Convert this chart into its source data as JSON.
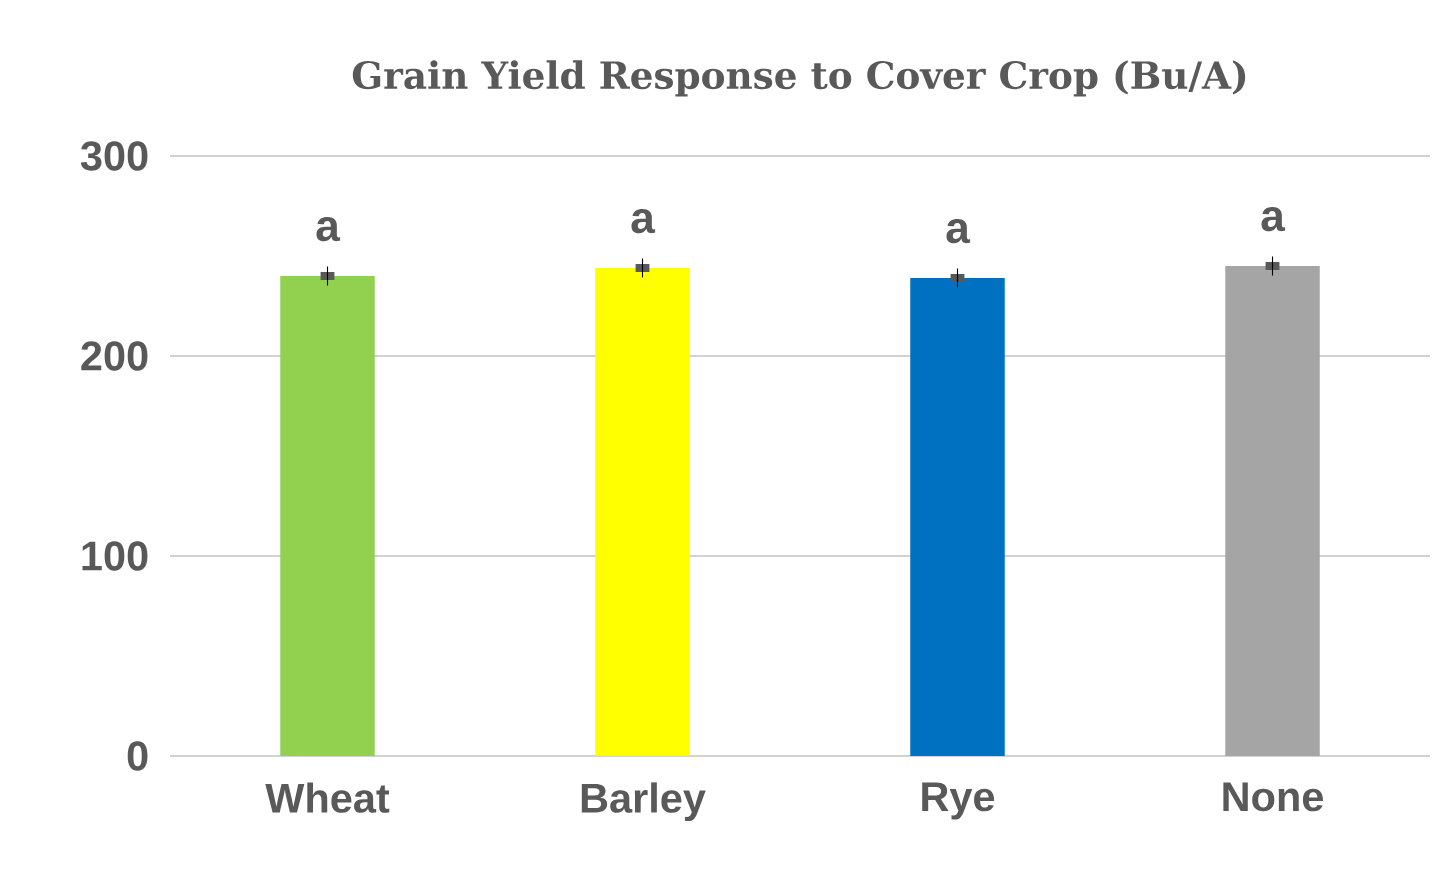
{
  "chart_data": {
    "type": "bar",
    "title": "Grain Yield Response to Cover Crop (Bu/A)",
    "categories": [
      "Wheat",
      "Barley",
      "Rye",
      "None"
    ],
    "values": [
      240,
      244,
      239,
      245
    ],
    "colors": [
      "#92d050",
      "#ffff00",
      "#0070c0",
      "#a5a5a5"
    ],
    "errors": [
      2,
      2,
      2,
      2
    ],
    "ylim": [
      0,
      300
    ],
    "yticks": [
      0,
      100,
      200,
      300
    ],
    "grid": "y",
    "annotations": [
      {
        "text": "a",
        "x": "Wheat",
        "y": 240
      },
      {
        "text": "a",
        "x": "Barley",
        "y": 244
      },
      {
        "text": "a",
        "x": "Rye",
        "y": 239
      },
      {
        "text": "a",
        "x": "None",
        "y": 245
      }
    ]
  }
}
